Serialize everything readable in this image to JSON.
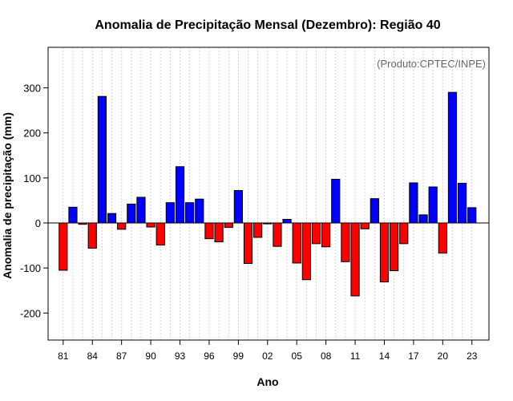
{
  "chart_data": {
    "type": "bar",
    "title": "Anomalia de Precipitação Mensal (Dezembro): Região 40",
    "xlabel": "Ano",
    "ylabel": "Anomalia de precipitação (mm)",
    "credit": "(Produto:CPTEC/INPE)",
    "ylim": [
      -260,
      390
    ],
    "yticks": [
      -200,
      -100,
      0,
      100,
      200,
      300
    ],
    "ytick_labels": [
      "-200",
      "-100",
      "0",
      "100",
      "200",
      "300"
    ],
    "xtick_labels": [
      "81",
      "84",
      "87",
      "90",
      "93",
      "96",
      "99",
      "02",
      "05",
      "08",
      "11",
      "14",
      "17",
      "20",
      "23"
    ],
    "xtick_years": [
      1981,
      1984,
      1987,
      1990,
      1993,
      1996,
      1999,
      2002,
      2005,
      2008,
      2011,
      2014,
      2017,
      2020,
      2023
    ],
    "grid": true,
    "colors": {
      "positive": "#0000ff",
      "negative": "#ff0000"
    },
    "categories": [
      1981,
      1982,
      1983,
      1984,
      1985,
      1986,
      1987,
      1988,
      1989,
      1990,
      1991,
      1992,
      1993,
      1994,
      1995,
      1996,
      1997,
      1998,
      1999,
      2000,
      2001,
      2002,
      2003,
      2004,
      2005,
      2006,
      2007,
      2008,
      2009,
      2010,
      2011,
      2012,
      2013,
      2014,
      2015,
      2016,
      2017,
      2018,
      2019,
      2020,
      2021,
      2022,
      2023
    ],
    "values": [
      -105,
      35,
      -3,
      -56,
      281,
      21,
      -14,
      42,
      57,
      -9,
      -49,
      45,
      125,
      45,
      53,
      -35,
      -42,
      -10,
      72,
      -90,
      -32,
      -2,
      -52,
      8,
      -89,
      -126,
      -46,
      -53,
      97,
      -86,
      -162,
      -13,
      54,
      -131,
      -106,
      -46,
      89,
      18,
      80,
      -67,
      290,
      88,
      34
    ]
  }
}
